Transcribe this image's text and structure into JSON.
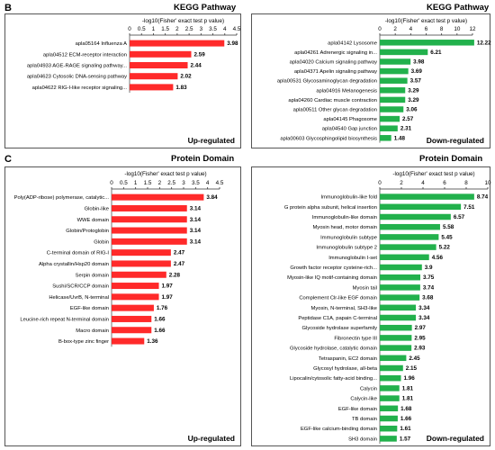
{
  "panels": {
    "b": {
      "letter": "B",
      "title_left": "KEGG Pathway",
      "title_right": "KEGG Pathway"
    },
    "c": {
      "letter": "C",
      "title_left": "Protein Domain",
      "title_right": "Protein Domain"
    }
  },
  "colors": {
    "up": "#ff2a2a",
    "down": "#22b14c"
  },
  "chart_data": [
    {
      "id": "kegg-up",
      "type": "bar",
      "orientation": "horizontal",
      "xlabel": "-log10(Fisher' exact test p value)",
      "xlim": [
        0,
        4.5
      ],
      "ticks": [
        0,
        0.5,
        1,
        1.5,
        2,
        2.5,
        3,
        3.5,
        4,
        4.5
      ],
      "tick_labels": [
        "0",
        "0.5",
        "1",
        "1.5",
        "2",
        "2.5",
        "3",
        "3.5",
        "4",
        "4.5"
      ],
      "corner_label": "Up-regulated",
      "color": "#ff2a2a",
      "categories": [
        "apla05164 Influenza A",
        "apla04512 ECM-receptor interaction",
        "apla04933 AGE-RAGE signaling pathway...",
        "apla04623 Cytosolic DNA-sensing pathway",
        "apla04622 RIG-I-like receptor signaling..."
      ],
      "values": [
        3.98,
        2.59,
        2.44,
        2.02,
        1.83
      ],
      "labels": [
        "3.98",
        "2.59",
        "2.44",
        "2.02",
        "1.83"
      ]
    },
    {
      "id": "kegg-down",
      "type": "bar",
      "orientation": "horizontal",
      "xlabel": "-log10(Fisher' exact test p value)",
      "xlim": [
        0,
        12
      ],
      "ticks": [
        0,
        2,
        4,
        6,
        8,
        10,
        12
      ],
      "tick_labels": [
        "0",
        "2",
        "4",
        "6",
        "8",
        "10",
        "12"
      ],
      "corner_label": "Down-regulated",
      "color": "#22b14c",
      "categories": [
        "apla04142 Lysosome",
        "apla04261 Adrenergic signaling in...",
        "apla04020 Calcium signaling pathway",
        "apla04371 Apelin signaling pathway",
        "apla00531 Glycosaminoglycan degradation",
        "apla04916 Melanogenesis",
        "apla04260 Cardiac muscle contraction",
        "apla00511 Other glycan degradation",
        "apla04145 Phagosome",
        "apla04540 Gap junction",
        "apla00603 Glycosphingolipid biosynthesis"
      ],
      "values": [
        12.22,
        6.21,
        3.98,
        3.69,
        3.57,
        3.29,
        3.29,
        3.06,
        2.57,
        2.31,
        1.48
      ],
      "labels": [
        "12.22",
        "6.21",
        "3.98",
        "3.69",
        "3.57",
        "3.29",
        "3.29",
        "3.06",
        "2.57",
        "2.31",
        "1.48"
      ]
    },
    {
      "id": "domain-up",
      "type": "bar",
      "orientation": "horizontal",
      "xlabel": "-log10(Fisher' exact test p value)",
      "xlim": [
        0,
        4.5
      ],
      "ticks": [
        0,
        0.5,
        1,
        1.5,
        2,
        2.5,
        3,
        3.5,
        4,
        4.5
      ],
      "tick_labels": [
        "0",
        "0.5",
        "1",
        "1.5",
        "2",
        "2.5",
        "3",
        "3.5",
        "4",
        "4.5"
      ],
      "corner_label": "Up-regulated",
      "color": "#ff2a2a",
      "categories": [
        "Poly(ADP-ribose) polymerase, catalytic...",
        "Globin-like",
        "WWE domain",
        "Globin/Protoglobin",
        "Globin",
        "C-terminal domain of RIG-I",
        "Alpha crystallin/Hsp20 domain",
        "Serpin domain",
        "Sushi/SCR/CCP domain",
        "Helicase/UvrB, N-terminal",
        "EGF-like domain",
        "Leucine-rich repeat N-terminal domain",
        "Macro domain",
        "B-box-type zinc finger"
      ],
      "values": [
        3.84,
        3.14,
        3.14,
        3.14,
        3.14,
        2.47,
        2.47,
        2.28,
        1.97,
        1.97,
        1.76,
        1.66,
        1.66,
        1.36
      ],
      "labels": [
        "3.84",
        "3.14",
        "3.14",
        "3.14",
        "3.14",
        "2.47",
        "2.47",
        "2.28",
        "1.97",
        "1.97",
        "1.76",
        "1.66",
        "1.66",
        "1.36"
      ]
    },
    {
      "id": "domain-down",
      "type": "bar",
      "orientation": "horizontal",
      "xlabel": "-log10(Fisher' exact test p value)",
      "xlim": [
        0,
        10
      ],
      "ticks": [
        0,
        2,
        4,
        6,
        8,
        10
      ],
      "tick_labels": [
        "0",
        "2",
        "4",
        "6",
        "8",
        "10"
      ],
      "corner_label": "Down-regulated",
      "color": "#22b14c",
      "categories": [
        "Immunoglobulin-like fold",
        "G protein alpha subunit, helical insertion",
        "Immunoglobulin-like domain",
        "Myosin head, motor domain",
        "Immunoglobulin subtype",
        "Immunoglobulin subtype 2",
        "Immunoglobulin I-set",
        "Growth factor receptor cysteine-rich...",
        "Myosin-like IQ motif-containing domain",
        "Myosin tail",
        "Complement Clr-like EGF domain",
        "Myosin, N-terminal, SH3-like",
        "Peptidase C1A, papain C-terminal",
        "Glycoside hydrolase superfamily",
        "Fibronectin type III",
        "Glycoside hydrolase, catalytic domain",
        "Tetraspanin, EC2 domain",
        "Glycosyl hydrolase, all-beta",
        "Lipocalin/cytosolic fatty-acid binding...",
        "Calycin",
        "Calycin-like",
        "EGF-like domain",
        "TB domain",
        "EGF-like calcium-binding domain",
        "SH3 domain"
      ],
      "values": [
        8.74,
        7.51,
        6.57,
        5.58,
        5.45,
        5.22,
        4.56,
        3.9,
        3.75,
        3.74,
        3.68,
        3.34,
        3.34,
        2.97,
        2.95,
        2.93,
        2.45,
        2.15,
        1.96,
        1.81,
        1.81,
        1.68,
        1.66,
        1.61,
        1.57
      ],
      "labels": [
        "8.74",
        "7.51",
        "6.57",
        "5.58",
        "5.45",
        "5.22",
        "4.56",
        "3.9",
        "3.75",
        "3.74",
        "3.68",
        "3.34",
        "3.34",
        "2.97",
        "2.95",
        "2.93",
        "2.45",
        "2.15",
        "1.96",
        "1.81",
        "1.81",
        "1.68",
        "1.66",
        "1.61",
        "1.57"
      ]
    }
  ]
}
